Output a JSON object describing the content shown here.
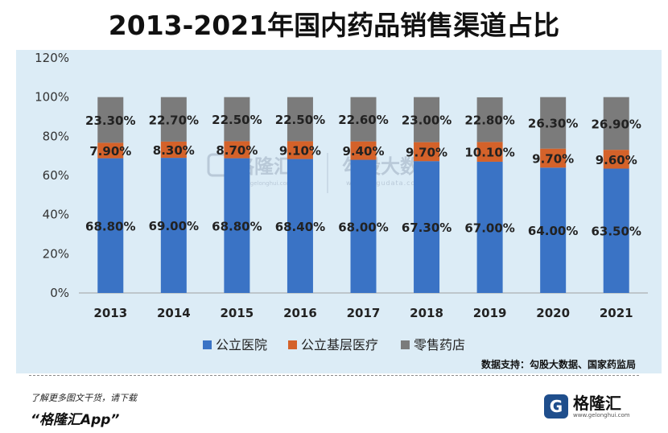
{
  "title": "2013-2021年国内药品销售渠道占比",
  "source": "数据支持：勾股大数据、国家药监局",
  "footer": {
    "note": "了解更多图文干货，请下载",
    "app": "“格隆汇App”"
  },
  "logo": {
    "mark": "G",
    "name": "格隆汇",
    "url": "www.gelonghui.com"
  },
  "watermarks": {
    "glh_name": "格隆汇",
    "glh_url": "www.gelonghui.com",
    "gg_name": "勾股大数据",
    "gg_url": "www.gogudata.com"
  },
  "colors": {
    "hospital": "#3a73c5",
    "grassroots": "#d4622a",
    "retail": "#7b7b7b",
    "background": "#dcecf6"
  },
  "chart_data": {
    "type": "bar",
    "stacked": true,
    "title": "2013-2021年国内药品销售渠道占比",
    "categories": [
      "2013",
      "2014",
      "2015",
      "2016",
      "2017",
      "2018",
      "2019",
      "2020",
      "2021"
    ],
    "ylim": [
      0,
      120
    ],
    "yticks": [
      "0%",
      "20%",
      "40%",
      "60%",
      "80%",
      "100%",
      "120%"
    ],
    "grid": false,
    "legend_position": "bottom",
    "series": [
      {
        "name": "公立医院",
        "values": [
          68.8,
          69.0,
          68.8,
          68.4,
          68.0,
          67.3,
          67.0,
          64.0,
          63.5
        ],
        "labels": [
          "68.80%",
          "69.00%",
          "68.80%",
          "68.40%",
          "68.00%",
          "67.30%",
          "67.00%",
          "64.00%",
          "63.50%"
        ]
      },
      {
        "name": "公立基层医疗",
        "values": [
          7.9,
          8.3,
          8.7,
          9.1,
          9.4,
          9.7,
          10.1,
          9.7,
          9.6
        ],
        "labels": [
          "7.90%",
          "8.30%",
          "8.70%",
          "9.10%",
          "9.40%",
          "9.70%",
          "10.10%",
          "9.70%",
          "9.60%"
        ]
      },
      {
        "name": "零售药店",
        "values": [
          23.3,
          22.7,
          22.5,
          22.5,
          22.6,
          23.0,
          22.8,
          26.3,
          26.9
        ],
        "labels": [
          "23.30%",
          "22.70%",
          "22.50%",
          "22.50%",
          "22.60%",
          "23.00%",
          "22.80%",
          "26.30%",
          "26.90%"
        ]
      }
    ]
  }
}
